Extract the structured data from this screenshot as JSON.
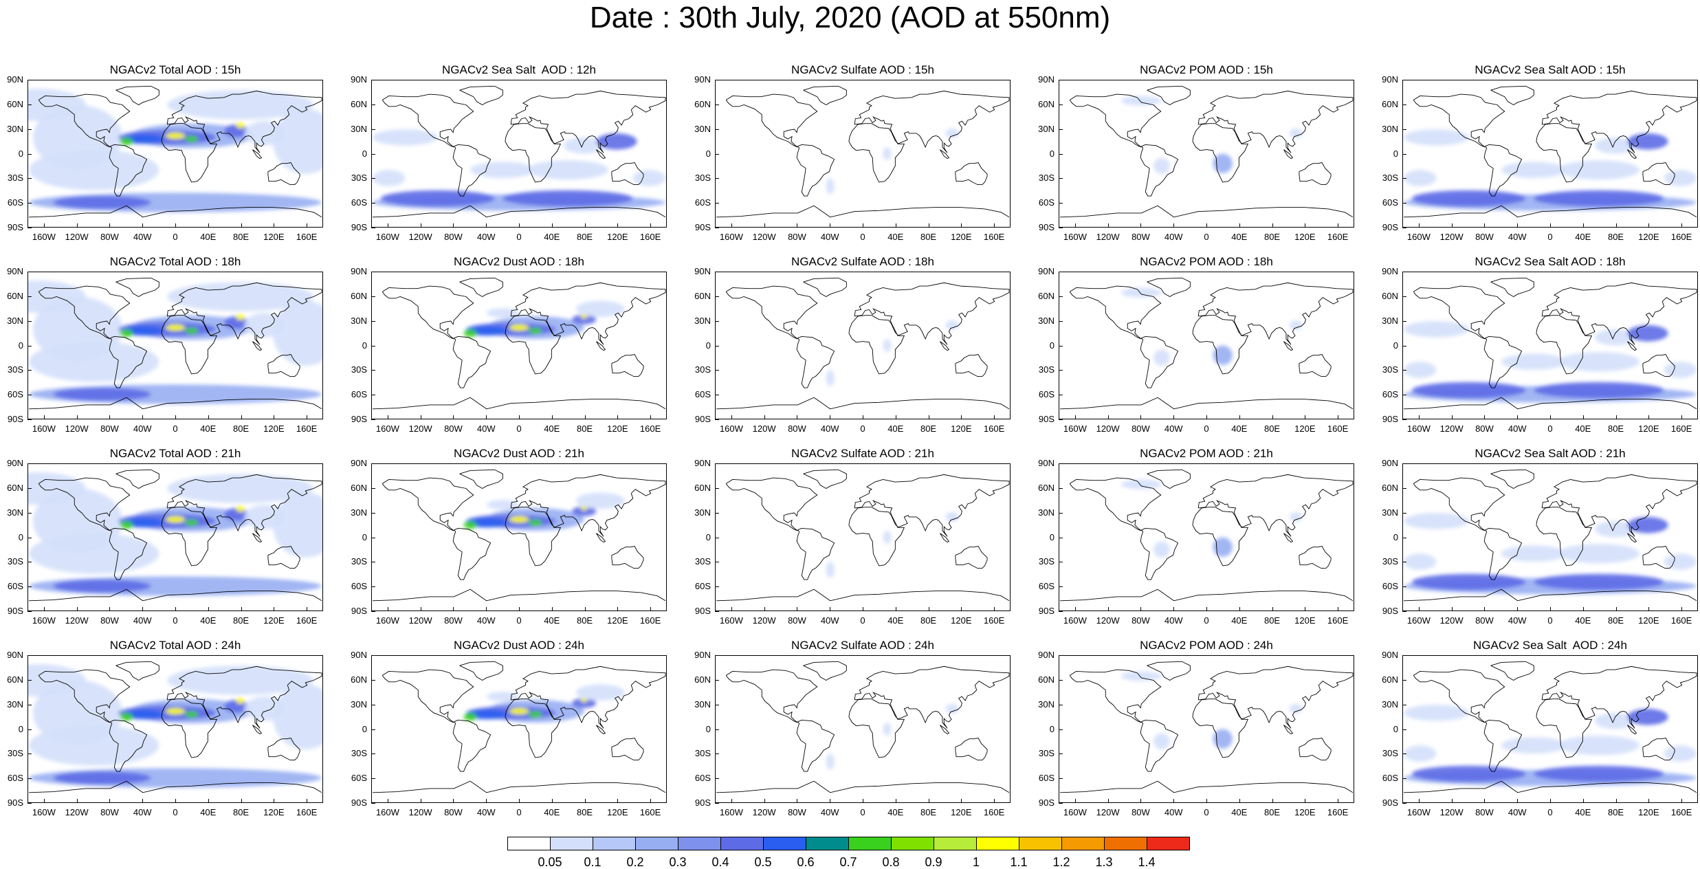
{
  "title": "Date : 30th July, 2020 (AOD at 550nm)",
  "lat_labels": [
    "90N",
    "60N",
    "30N",
    "0",
    "30S",
    "60S",
    "90S"
  ],
  "lon_labels": [
    "160W",
    "120W",
    "80W",
    "40W",
    "0",
    "40E",
    "80E",
    "120E",
    "160E"
  ],
  "panels": [
    [
      "NGACv2 Total AOD : 15h",
      "NGACv2 Sea Salt  AOD : 12h",
      "NGACv2 Sulfate AOD : 15h",
      "NGACv2 POM AOD : 15h",
      "NGACv2 Sea Salt AOD : 15h"
    ],
    [
      "NGACv2 Total AOD : 18h",
      "NGACv2 Dust AOD : 18h",
      "NGACv2 Sulfate AOD : 18h",
      "NGACv2 POM AOD : 18h",
      "NGACv2 Sea Salt AOD : 18h"
    ],
    [
      "NGACv2 Total AOD : 21h",
      "NGACv2 Dust AOD : 21h",
      "NGACv2 Sulfate AOD : 21h",
      "NGACv2 POM AOD : 21h",
      "NGACv2 Sea Salt AOD : 21h"
    ],
    [
      "NGACv2 Total AOD : 24h",
      "NGACv2 Dust AOD : 24h",
      "NGACv2 Sulfate AOD : 24h",
      "NGACv2 POM AOD : 24h",
      "NGACv2 Sea Salt  AOD : 24h"
    ]
  ],
  "colorbar": {
    "labels": [
      "0.05",
      "0.1",
      "0.2",
      "0.3",
      "0.4",
      "0.5",
      "0.6",
      "0.7",
      "0.8",
      "0.9",
      "1",
      "1.1",
      "1.2",
      "1.3",
      "1.4"
    ],
    "colors": [
      "#ffffff",
      "#d4e0fb",
      "#b6c8f7",
      "#97aef2",
      "#7d91ed",
      "#5d6ce6",
      "#2a5ef0",
      "#008c8c",
      "#3ad01e",
      "#80e000",
      "#b8ec3a",
      "#ffff00",
      "#f8c200",
      "#f59a00",
      "#ef7000",
      "#ee2a1a"
    ]
  },
  "field_colors": {
    "land_line": "#000000",
    "light": "#d4e0fb",
    "mid": "#97aef2",
    "strong": "#5d6ce6",
    "hot": "#2a5ef0",
    "green": "#3ad01e",
    "yellow": "#ffff00"
  }
}
